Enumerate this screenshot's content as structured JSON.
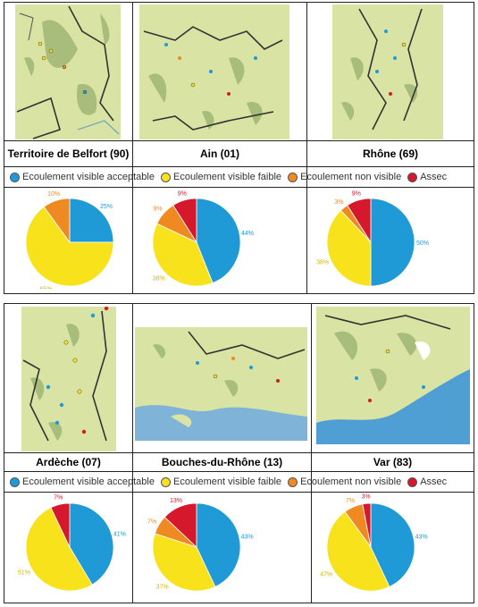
{
  "colors": {
    "acceptable": "#1f9ad6",
    "faible": "#f7e21c",
    "non_visible": "#ef8a22",
    "assec": "#d5182c"
  },
  "legend": [
    {
      "key": "acceptable",
      "label": "Ecoulement visible acceptable"
    },
    {
      "key": "faible",
      "label": "Ecoulement visible faible"
    },
    {
      "key": "non_visible",
      "label": "Ecoulement non visible"
    },
    {
      "key": "assec",
      "label": "Assec"
    }
  ],
  "departments": [
    {
      "name": "Territoire de Belfort (90)"
    },
    {
      "name": "Ain (01)"
    },
    {
      "name": "Rhône (69)"
    },
    {
      "name": "Ardèche (07)"
    },
    {
      "name": "Bouches-du-Rhône (13)"
    },
    {
      "name": "Var (83)"
    }
  ],
  "chart_data": [
    {
      "type": "pie",
      "title": "Territoire de Belfort (90)",
      "categories": [
        "Ecoulement visible acceptable",
        "Ecoulement visible faible",
        "Ecoulement non visible",
        "Assec"
      ],
      "values": [
        25,
        65,
        10,
        0
      ],
      "labels": [
        "25%",
        "65%",
        "10%",
        ""
      ]
    },
    {
      "type": "pie",
      "title": "Ain (01)",
      "categories": [
        "Ecoulement visible acceptable",
        "Ecoulement visible faible",
        "Ecoulement non visible",
        "Assec"
      ],
      "values": [
        44,
        38,
        9,
        9
      ],
      "labels": [
        "44%",
        "38%",
        "9%",
        "9%"
      ]
    },
    {
      "type": "pie",
      "title": "Rhône (69)",
      "categories": [
        "Ecoulement visible acceptable",
        "Ecoulement visible faible",
        "Ecoulement non visible",
        "Assec"
      ],
      "values": [
        50,
        38,
        3,
        9
      ],
      "labels": [
        "50%",
        "38%",
        "3%",
        "9%"
      ]
    },
    {
      "type": "pie",
      "title": "Ardèche (07)",
      "categories": [
        "Ecoulement visible acceptable",
        "Ecoulement visible faible",
        "Ecoulement non visible",
        "Assec"
      ],
      "values": [
        41,
        51,
        0,
        7
      ],
      "labels": [
        "41%",
        "51%",
        "",
        "7%"
      ]
    },
    {
      "type": "pie",
      "title": "Bouches-du-Rhône (13)",
      "categories": [
        "Ecoulement visible acceptable",
        "Ecoulement visible faible",
        "Ecoulement non visible",
        "Assec"
      ],
      "values": [
        43,
        37,
        7,
        13
      ],
      "labels": [
        "43%",
        "37%",
        "7%",
        "13%"
      ]
    },
    {
      "type": "pie",
      "title": "Var (83)",
      "categories": [
        "Ecoulement visible acceptable",
        "Ecoulement visible faible",
        "Ecoulement non visible",
        "Assec"
      ],
      "values": [
        43,
        47,
        7,
        3
      ],
      "labels": [
        "43%",
        "47%",
        "7%",
        "3%"
      ]
    }
  ]
}
